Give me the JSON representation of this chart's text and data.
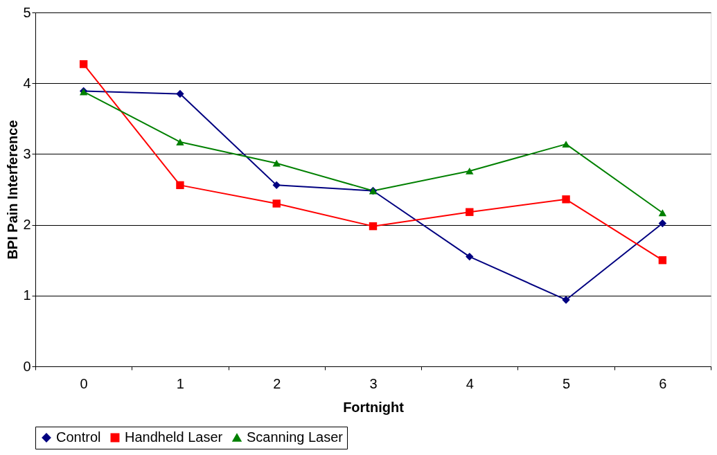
{
  "chart_data": {
    "type": "line",
    "xlabel": "Fortnight",
    "ylabel": "BPI Pain Interference",
    "categories": [
      "0",
      "1",
      "2",
      "3",
      "4",
      "5",
      "6"
    ],
    "series": [
      {
        "name": "Control",
        "color": "#000080",
        "marker": "diamond",
        "values": [
          3.89,
          3.85,
          2.56,
          2.48,
          1.55,
          0.94,
          2.02
        ]
      },
      {
        "name": "Handheld Laser",
        "color": "#ff0000",
        "marker": "square",
        "values": [
          4.27,
          2.56,
          2.3,
          1.98,
          2.18,
          2.36,
          1.5
        ]
      },
      {
        "name": "Scanning Laser",
        "color": "#008000",
        "marker": "triangle",
        "values": [
          3.88,
          3.17,
          2.87,
          2.48,
          2.76,
          3.14,
          2.17
        ]
      }
    ],
    "ylim": [
      0,
      5
    ],
    "yticks": [
      0,
      1,
      2,
      3,
      4,
      5
    ],
    "grid": "y",
    "legend": "bottom",
    "line_style": "solid"
  }
}
